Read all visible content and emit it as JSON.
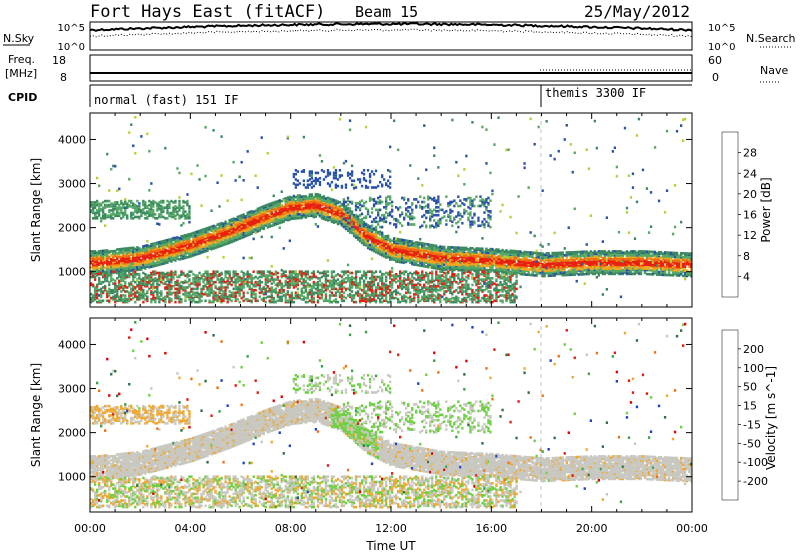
{
  "header": {
    "title": "Fort Hays East (fitACF)",
    "beam": "Beam 15",
    "date": "25/May/2012"
  },
  "noise_panel": {
    "left_label": "N.Sky",
    "right_label": "N.Search",
    "left_ticks": [
      "10^5",
      "10^0"
    ],
    "right_ticks": [
      "10^5",
      "10^0"
    ]
  },
  "freq_panel": {
    "left_label_1": "Freq.",
    "left_label_2": "[MHz]",
    "right_label": "Nave",
    "left_ticks": [
      "18",
      "8"
    ],
    "right_ticks": [
      "60",
      "0"
    ]
  },
  "cpid_panel": {
    "label": "CPID",
    "modes": [
      {
        "text": "normal (fast) 151 IF",
        "start_hour": 0
      },
      {
        "text": "themis 3300 IF",
        "start_hour": 18
      }
    ]
  },
  "chart_data": [
    {
      "type": "heatmap",
      "name": "power",
      "ylabel": "Slant Range [km]",
      "xlabel": "",
      "xlim": [
        0,
        24
      ],
      "ylim": [
        200,
        4600
      ],
      "yticks": [
        1000,
        2000,
        3000,
        4000
      ],
      "colorbar": {
        "label": "Power [dB]",
        "ticks": [
          "4",
          "8",
          "12",
          "16",
          "20",
          "24",
          "28"
        ],
        "colors": [
          "#1e1ee0",
          "#2a52a8",
          "#3d8a60",
          "#56a866",
          "#b6d03c",
          "#f0a820",
          "#f07010",
          "#e82010"
        ]
      },
      "bands": [
        {
          "name": "main",
          "points": [
            [
              0.3,
              1200
            ],
            [
              2,
              1300
            ],
            [
              4,
              1600
            ],
            [
              5.5,
              1900
            ],
            [
              7,
              2250
            ],
            [
              8,
              2450
            ],
            [
              9,
              2500
            ],
            [
              10,
              2300
            ],
            [
              11,
              1800
            ],
            [
              12,
              1500
            ],
            [
              14,
              1300
            ],
            [
              16,
              1250
            ],
            [
              18,
              1150
            ],
            [
              20,
              1200
            ],
            [
              22,
              1200
            ],
            [
              23.8,
              1150
            ]
          ]
        }
      ]
    },
    {
      "type": "heatmap",
      "name": "velocity",
      "ylabel": "Slant Range [km]",
      "xlabel": "Time UT",
      "xlim": [
        0,
        24
      ],
      "ylim": [
        200,
        4600
      ],
      "xticks": [
        "00:00",
        "04:00",
        "08:00",
        "12:00",
        "16:00",
        "20:00",
        "00:00"
      ],
      "yticks": [
        1000,
        2000,
        3000,
        4000
      ],
      "colorbar": {
        "label": "Velocity [m s^-1]",
        "ticks": [
          "200",
          "100",
          "50",
          "15",
          "-15",
          "-50",
          "-100",
          "-200"
        ],
        "colors": [
          "#2040c8",
          "#2f7040",
          "#3aa050",
          "#6cd040",
          "#c8c8c0",
          "#f0a830",
          "#f07010",
          "#e02010",
          "#e00000"
        ]
      }
    }
  ]
}
